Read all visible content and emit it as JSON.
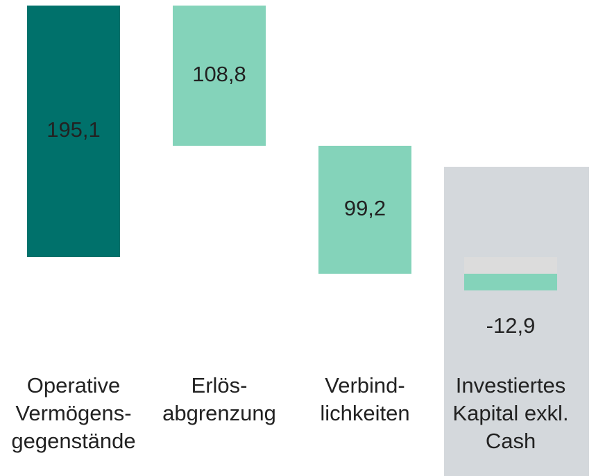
{
  "chart_data": {
    "type": "waterfall",
    "categories": [
      [
        "Operative",
        "Vermögens-",
        "gegenstände"
      ],
      [
        "Erlös-",
        "abgrenzung"
      ],
      [
        "Verbind-",
        "lichkeiten"
      ],
      [
        "Investiertes",
        "Kapital exkl.",
        "Cash"
      ]
    ],
    "values": [
      195.1,
      108.8,
      99.2,
      -12.9
    ],
    "value_labels": [
      "195,1",
      "108,8",
      "99,2",
      "-12,9"
    ],
    "steps": [
      "increase",
      "decrease",
      "decrease",
      "total"
    ],
    "colors": [
      "#00716b",
      "#84d3ba",
      "#84d3ba",
      "#84d3ba"
    ],
    "highlight": 3
  }
}
